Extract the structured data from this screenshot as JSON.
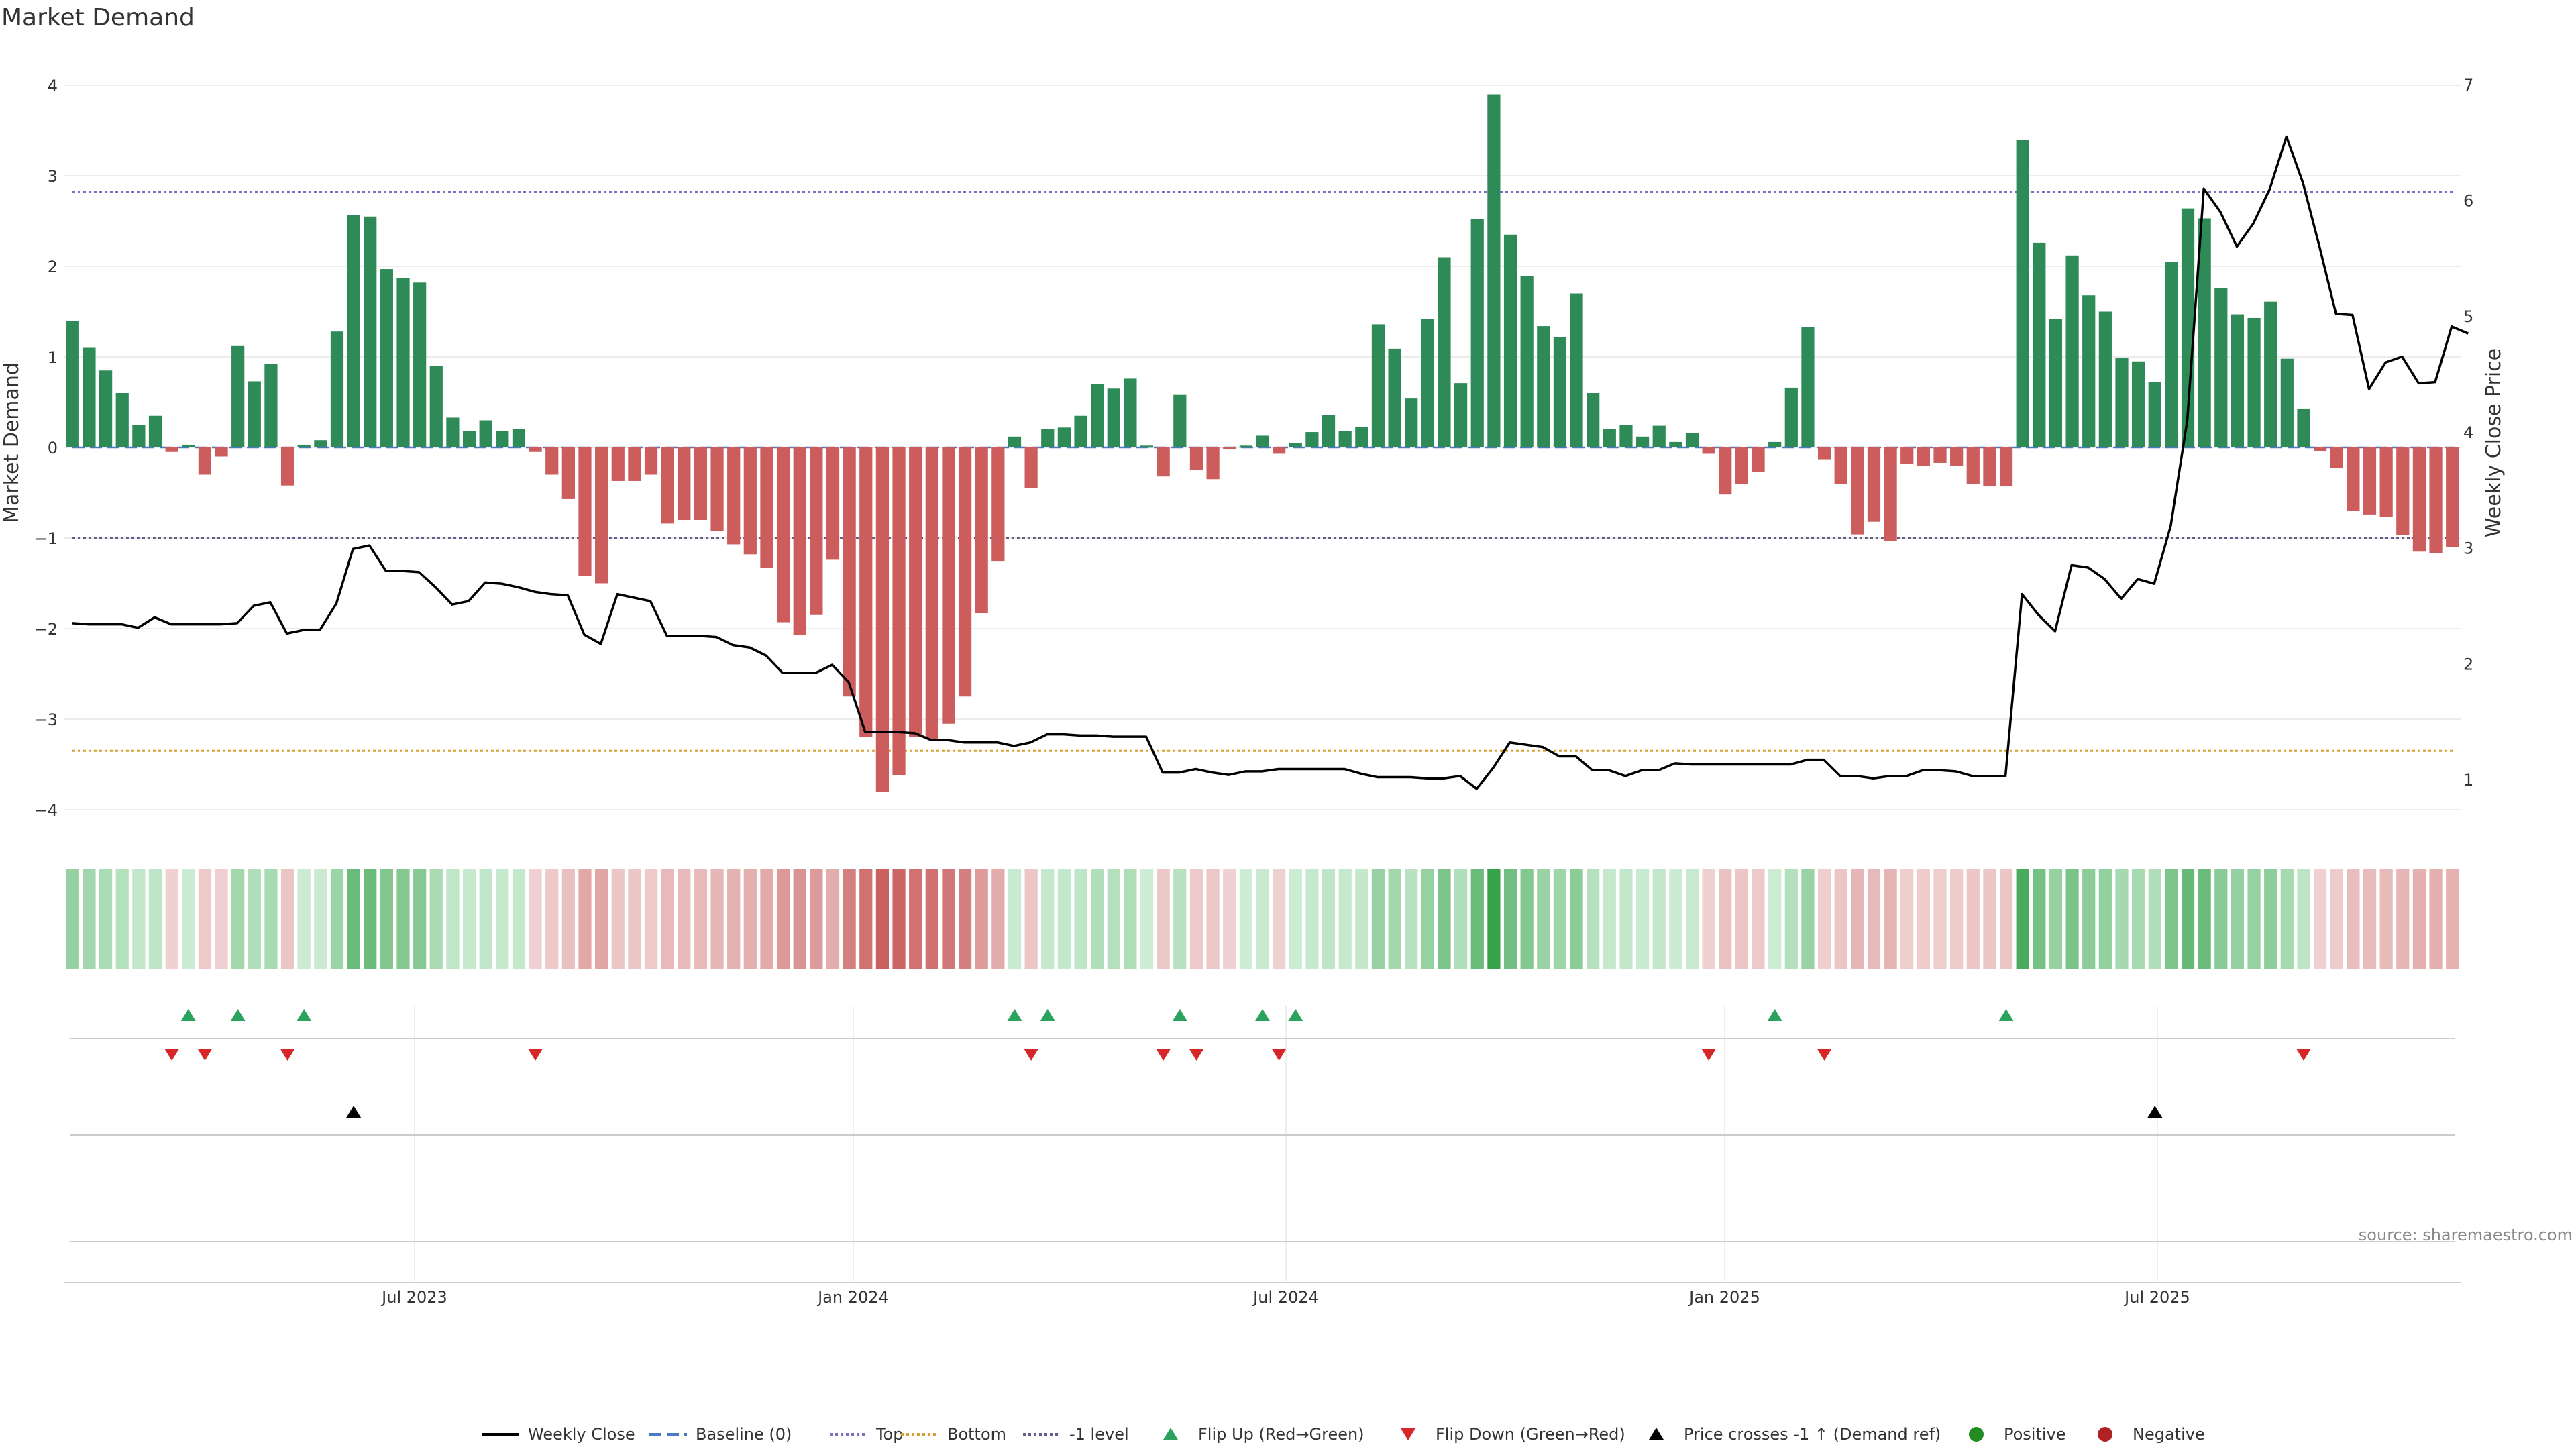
{
  "chart_data": {
    "type": "bar",
    "title": "Market Demand",
    "ylabel_left": "Market Demand",
    "ylabel_right": "Weekly Close Price",
    "ylim_left": [
      -4.3,
      4.3
    ],
    "ylim_right": [
      0.55,
      7.2
    ],
    "yticks_left": [
      "4",
      "3",
      "2",
      "1",
      "0",
      "−1",
      "−2",
      "−3",
      "−4"
    ],
    "yticks_right": [
      "7",
      "6",
      "5",
      "4",
      "3",
      "2",
      "1"
    ],
    "x_tick_labels": [
      "Jul 2023",
      "Jan 2024",
      "Jul 2024",
      "Jan 2025",
      "Jul 2025"
    ],
    "reference_lines": {
      "top": 2.82,
      "bottom": -3.35,
      "minus_one": -1.0
    },
    "demand": [
      1.4,
      1.1,
      0.85,
      0.6,
      0.25,
      0.35,
      -0.05,
      0.03,
      -0.3,
      -0.1,
      1.12,
      0.73,
      0.92,
      -0.42,
      0.03,
      0.08,
      1.28,
      2.57,
      2.55,
      1.97,
      1.87,
      1.82,
      0.9,
      0.33,
      0.18,
      0.3,
      0.18,
      0.2,
      -0.05,
      -0.3,
      -0.57,
      -1.42,
      -1.5,
      -0.37,
      -0.37,
      -0.3,
      -0.84,
      -0.8,
      -0.8,
      -0.92,
      -1.07,
      -1.18,
      -1.33,
      -1.93,
      -2.07,
      -1.85,
      -1.24,
      -2.75,
      -3.2,
      -3.8,
      -3.62,
      -3.2,
      -3.22,
      -3.05,
      -2.75,
      -1.83,
      -1.26,
      0.12,
      -0.45,
      0.2,
      0.22,
      0.35,
      0.7,
      0.65,
      0.76,
      0.02,
      -0.32,
      0.58,
      -0.25,
      -0.35,
      -0.02,
      0.02,
      0.13,
      -0.07,
      0.05,
      0.17,
      0.36,
      0.18,
      0.23,
      1.36,
      1.09,
      0.54,
      1.42,
      2.1,
      0.71,
      2.52,
      3.9,
      2.35,
      1.89,
      1.34,
      1.22,
      1.7,
      0.6,
      0.2,
      0.25,
      0.12,
      0.24,
      0.06,
      0.16,
      -0.07,
      -0.52,
      -0.4,
      -0.27,
      0.06,
      0.66,
      1.33,
      -0.13,
      -0.4,
      -0.96,
      -0.82,
      -1.03,
      -0.18,
      -0.2,
      -0.17,
      -0.2,
      -0.4,
      -0.43,
      -0.43,
      3.4,
      2.26,
      1.42,
      2.12,
      1.68,
      1.5,
      0.99,
      0.95,
      0.72,
      2.05,
      2.64,
      2.53,
      1.76,
      1.47,
      1.43,
      1.61,
      0.98,
      0.43,
      -0.04,
      -0.23,
      -0.7,
      -0.74,
      -0.77,
      -0.97,
      -1.15,
      -1.17,
      -1.1
    ],
    "weekly_close": [
      2.35,
      2.34,
      2.34,
      2.34,
      2.31,
      2.4,
      2.34,
      2.34,
      2.34,
      2.34,
      2.35,
      2.5,
      2.53,
      2.26,
      2.29,
      2.29,
      2.52,
      2.99,
      3.02,
      2.8,
      2.8,
      2.79,
      2.66,
      2.51,
      2.54,
      2.7,
      2.69,
      2.66,
      2.62,
      2.6,
      2.59,
      2.25,
      2.17,
      2.6,
      2.57,
      2.54,
      2.24,
      2.24,
      2.24,
      2.23,
      2.16,
      2.14,
      2.07,
      1.92,
      1.92,
      1.92,
      1.99,
      1.84,
      1.41,
      1.41,
      1.41,
      1.4,
      1.34,
      1.34,
      1.32,
      1.32,
      1.32,
      1.29,
      1.32,
      1.39,
      1.39,
      1.38,
      1.38,
      1.37,
      1.37,
      1.37,
      1.06,
      1.06,
      1.09,
      1.06,
      1.04,
      1.07,
      1.07,
      1.09,
      1.09,
      1.09,
      1.09,
      1.09,
      1.05,
      1.02,
      1.02,
      1.02,
      1.01,
      1.01,
      1.03,
      0.92,
      1.1,
      1.32,
      1.3,
      1.28,
      1.2,
      1.2,
      1.08,
      1.08,
      1.03,
      1.08,
      1.08,
      1.14,
      1.13,
      1.13,
      1.13,
      1.13,
      1.13,
      1.13,
      1.13,
      1.17,
      1.17,
      1.03,
      1.03,
      1.01,
      1.03,
      1.03,
      1.08,
      1.08,
      1.07,
      1.03,
      1.03,
      1.03,
      2.6,
      2.42,
      2.28,
      2.85,
      2.83,
      2.73,
      2.56,
      2.73,
      2.69,
      3.19,
      4.1,
      6.1,
      5.9,
      5.6,
      5.8,
      6.1,
      6.55,
      6.15,
      5.6,
      5.02,
      5.01,
      4.37,
      4.6,
      4.65,
      4.42,
      4.43,
      4.91,
      4.85
    ]
  },
  "legend": [
    {
      "label": "Weekly Close",
      "color": "#000000"
    },
    {
      "label": "Baseline (0)",
      "color": "#4a78c2"
    },
    {
      "label": "Top",
      "color": "#7a6fc4"
    },
    {
      "label": "Bottom",
      "color": "#d9a030"
    },
    {
      "label": "-1 level",
      "color": "#6a5a8a"
    },
    {
      "label": "Flip Up (Red→Green)",
      "color": "#2ca25f"
    },
    {
      "label": "Flip Down (Green→Red)",
      "color": "#d62728"
    },
    {
      "label": "Price crosses -1 ↑ (Demand ref)",
      "color": "#000000"
    },
    {
      "label": "Positive",
      "color": "#228b22"
    },
    {
      "label": "Negative",
      "color": "#b22222"
    }
  ],
  "source_text": "source: sharemaestro.com",
  "colors": {
    "positive_bar": "#2e8b57",
    "negative_bar": "#cd5c5c",
    "close_line": "#000000"
  },
  "icons": [
    "triangle-up-icon",
    "triangle-down-icon",
    "circle-icon"
  ]
}
